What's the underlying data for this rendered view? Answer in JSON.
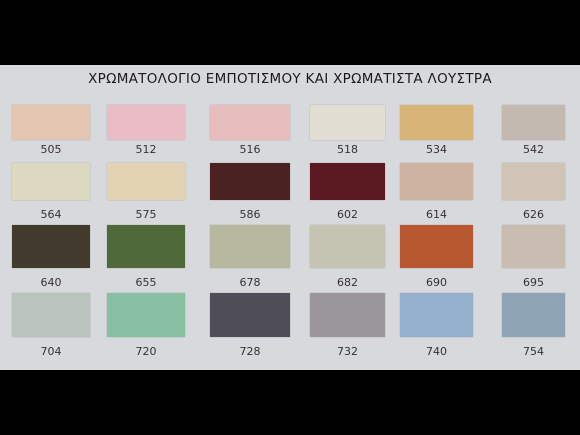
{
  "title": "ΧΡΩΜΑΤΟΛΟΓΙΟ ΕΜΠΟΤΙΣΜΟΥ ΚΑΙ ΧΡΩΜΑΤΙΣΤΑ ΛΟΥΣΤΡΑ",
  "rows": [
    [
      {
        "code": "505",
        "color": "#e3c5b2"
      },
      {
        "code": "512",
        "color": "#eabdc6"
      },
      {
        "code": "516",
        "color": "#e7bcbc"
      },
      {
        "code": "518",
        "color": "#e2ddd2"
      },
      {
        "code": "534",
        "color": "#d8b478"
      },
      {
        "code": "542",
        "color": "#c4b9b0"
      }
    ],
    [
      {
        "code": "564",
        "color": "#dcd8c2"
      },
      {
        "code": "575",
        "color": "#e3d3b2"
      },
      {
        "code": "586",
        "color": "#4a2222"
      },
      {
        "code": "602",
        "color": "#5a1820"
      },
      {
        "code": "614",
        "color": "#cdb3a0"
      },
      {
        "code": "626",
        "color": "#cfc4b6"
      }
    ],
    [
      {
        "code": "640",
        "color": "#423a2c"
      },
      {
        "code": "655",
        "color": "#4f6938"
      },
      {
        "code": "678",
        "color": "#b7b8a0"
      },
      {
        "code": "682",
        "color": "#c5c4b2"
      },
      {
        "code": "690",
        "color": "#b85830"
      },
      {
        "code": "695",
        "color": "#c8bdb0"
      }
    ],
    [
      {
        "code": "704",
        "color": "#b8c4bc"
      },
      {
        "code": "720",
        "color": "#89c0a4"
      },
      {
        "code": "728",
        "color": "#4f4d55"
      },
      {
        "code": "732",
        "color": "#9b969c"
      },
      {
        "code": "740",
        "color": "#94b0cc"
      },
      {
        "code": "754",
        "color": "#8fa4b4"
      }
    ]
  ]
}
